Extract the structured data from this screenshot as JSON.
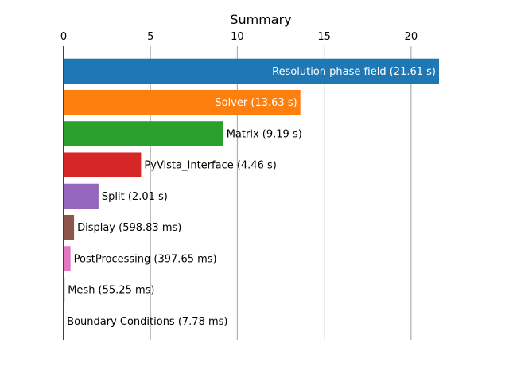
{
  "chart_data": {
    "type": "bar",
    "orientation": "horizontal",
    "title": "Summary",
    "xlabel": "",
    "ylabel": "",
    "xlim": [
      0,
      21.61
    ],
    "x_ticks": [
      0,
      5,
      10,
      15,
      20
    ],
    "x_tick_labels": [
      "0",
      "5",
      "10",
      "15",
      "20"
    ],
    "x_axis_position": "top",
    "grid": "vertical",
    "categories": [
      "Resolution phase field",
      "Solver",
      "Matrix",
      "PyVista_Interface",
      "Split",
      "Display",
      "PostProcessing",
      "Mesh",
      "Boundary Conditions"
    ],
    "values": [
      21.61,
      13.63,
      9.19,
      4.46,
      2.01,
      0.59883,
      0.39765,
      0.05525,
      0.00778
    ],
    "labels": [
      "Resolution phase field (21.61 s)",
      "Solver (13.63 s)",
      "Matrix (9.19 s)",
      "PyVista_Interface (4.46 s)",
      "Split (2.01 s)",
      "Display (598.83 ms)",
      "PostProcessing (397.65 ms)",
      "Mesh (55.25 ms)",
      "Boundary Conditions (7.78 ms)"
    ],
    "colors": [
      "#1f77b4",
      "#ff7f0e",
      "#2ca02c",
      "#d62728",
      "#9467bd",
      "#8c564b",
      "#e377c2",
      "#7f7f7f",
      "#bcbd22"
    ]
  }
}
